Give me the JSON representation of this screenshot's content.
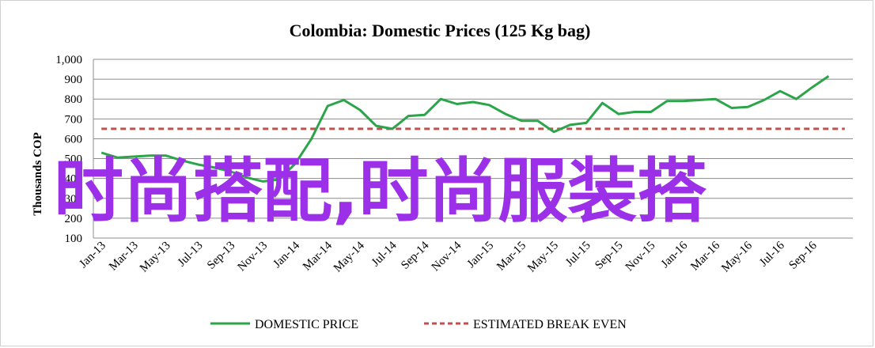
{
  "chart_data": {
    "type": "line",
    "title": "Colombia: Domestic Prices (125 Kg bag)",
    "ylabel": "Thousands COP",
    "xlabel": "",
    "ylim": [
      100,
      1000
    ],
    "yticks": [
      100,
      200,
      300,
      400,
      500,
      600,
      700,
      800,
      900,
      1000
    ],
    "ytick_labels": [
      "100",
      "200",
      "300",
      "400",
      "500",
      "600",
      "700",
      "800",
      "900",
      "1,000"
    ],
    "categories": [
      "Jan-13",
      "Feb-13",
      "Mar-13",
      "Apr-13",
      "May-13",
      "Jun-13",
      "Jul-13",
      "Aug-13",
      "Sep-13",
      "Oct-13",
      "Nov-13",
      "Dec-13",
      "Jan-14",
      "Feb-14",
      "Mar-14",
      "Apr-14",
      "May-14",
      "Jun-14",
      "Jul-14",
      "Aug-14",
      "Sep-14",
      "Oct-14",
      "Nov-14",
      "Dec-14",
      "Jan-15",
      "Feb-15",
      "Mar-15",
      "Apr-15",
      "May-15",
      "Jun-15",
      "Jul-15",
      "Aug-15",
      "Sep-15",
      "Oct-15",
      "Nov-15",
      "Dec-15",
      "Jan-16",
      "Feb-16",
      "Mar-16",
      "Apr-16",
      "May-16",
      "Jun-16",
      "Jul-16",
      "Aug-16",
      "Sep-16",
      "Oct-16",
      "Nov-16"
    ],
    "xtick_labels": [
      "Jan-13",
      "Mar-13",
      "May-13",
      "Jul-13",
      "Sep-13",
      "Nov-13",
      "Jan-14",
      "Mar-14",
      "May-14",
      "Jul-14",
      "Sep-14",
      "Nov-14",
      "Jan-15",
      "Mar-15",
      "May-15",
      "Jul-15",
      "Sep-15",
      "Nov-15",
      "Jan-16",
      "Mar-16",
      "May-16",
      "Jul-16",
      "Sep-16"
    ],
    "series": [
      {
        "name": "DOMESTIC PRICE",
        "color": "#2ca44a",
        "style": "solid",
        "values": [
          530,
          505,
          510,
          515,
          515,
          490,
          470,
          455,
          435,
          405,
          385,
          395,
          475,
          600,
          765,
          795,
          745,
          665,
          650,
          715,
          720,
          800,
          775,
          785,
          770,
          725,
          690,
          690,
          635,
          670,
          680,
          780,
          725,
          735,
          735,
          790,
          790,
          795,
          800,
          755,
          760,
          795,
          840,
          800,
          860,
          915,
          null
        ]
      },
      {
        "name": "ESTIMATED BREAK EVEN",
        "color": "#c0504d",
        "style": "dashed",
        "values": [
          650,
          650,
          650,
          650,
          650,
          650,
          650,
          650,
          650,
          650,
          650,
          650,
          650,
          650,
          650,
          650,
          650,
          650,
          650,
          650,
          650,
          650,
          650,
          650,
          650,
          650,
          650,
          650,
          650,
          650,
          650,
          650,
          650,
          650,
          650,
          650,
          650,
          650,
          650,
          650,
          650,
          650,
          650,
          650,
          650,
          650,
          650
        ]
      }
    ],
    "grid": true,
    "legend": "bottom"
  },
  "overlay_text": "时尚搭配,时尚服装搭"
}
